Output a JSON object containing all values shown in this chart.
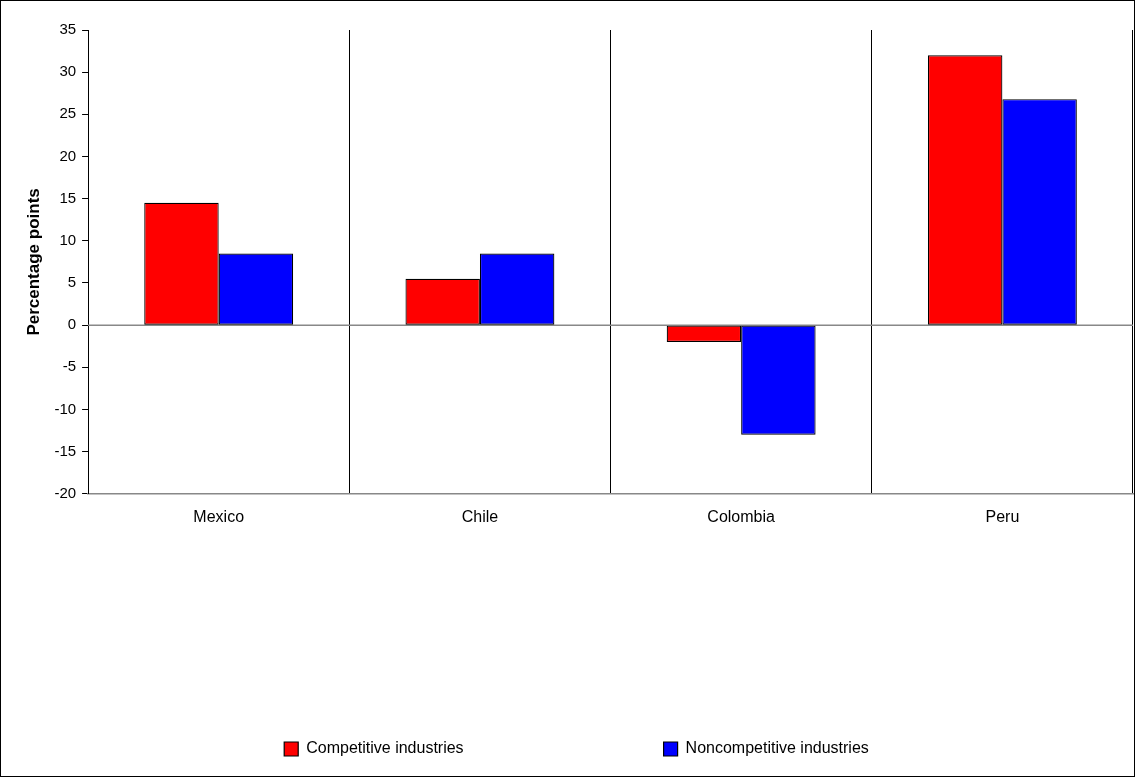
{
  "chart_data": {
    "type": "bar",
    "ylabel": "Percentage points",
    "categories": [
      "Mexico",
      "Chile",
      "Colombia",
      "Peru"
    ],
    "series": [
      {
        "name": "Competitive industries",
        "color": "#ff0000",
        "values": [
          14.5,
          5.5,
          -2,
          32
        ]
      },
      {
        "name": "Noncompetitive industries",
        "color": "#0000ff",
        "values": [
          8.5,
          8.5,
          -13,
          26.8
        ]
      }
    ],
    "ylim": [
      -20,
      35
    ],
    "yticks": [
      -20,
      -15,
      -10,
      -5,
      0,
      5,
      10,
      15,
      20,
      25,
      30,
      35
    ],
    "grid": "x",
    "legend": "bottom"
  }
}
